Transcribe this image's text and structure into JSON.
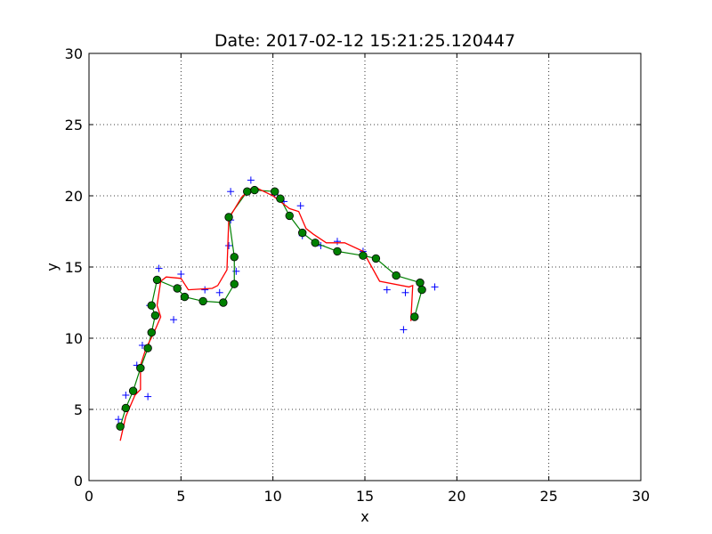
{
  "chart_data": {
    "type": "line",
    "title": "Date: 2017-02-12 15:21:25.120447",
    "xlabel": "x",
    "ylabel": "y",
    "xlim": [
      0,
      30
    ],
    "ylim": [
      0,
      30
    ],
    "xticks": [
      0,
      5,
      10,
      15,
      20,
      25,
      30
    ],
    "yticks": [
      0,
      5,
      10,
      15,
      20,
      25,
      30
    ],
    "xtick_labels": [
      "0",
      "5",
      "10",
      "15",
      "20",
      "25",
      "30"
    ],
    "ytick_labels": [
      "0",
      "5",
      "10",
      "15",
      "20",
      "25",
      "30"
    ],
    "grid": true,
    "series": [
      {
        "style": "plus-markers",
        "color": "#0000ff",
        "points": [
          [
            1.6,
            4.3
          ],
          [
            2.0,
            6.0
          ],
          [
            2.6,
            8.1
          ],
          [
            2.9,
            9.5
          ],
          [
            3.2,
            5.9
          ],
          [
            3.3,
            12.3
          ],
          [
            3.8,
            14.9
          ],
          [
            4.6,
            11.3
          ],
          [
            5.0,
            14.5
          ],
          [
            6.3,
            13.4
          ],
          [
            7.1,
            13.2
          ],
          [
            7.6,
            16.5
          ],
          [
            7.7,
            20.3
          ],
          [
            7.7,
            18.3
          ],
          [
            8.0,
            14.7
          ],
          [
            8.8,
            21.1
          ],
          [
            10.1,
            20.1
          ],
          [
            10.6,
            19.6
          ],
          [
            11.5,
            19.3
          ],
          [
            11.6,
            17.2
          ],
          [
            12.6,
            16.5
          ],
          [
            13.5,
            16.8
          ],
          [
            14.9,
            16.1
          ],
          [
            16.2,
            13.4
          ],
          [
            17.1,
            10.6
          ],
          [
            17.2,
            13.2
          ],
          [
            18.1,
            13.4
          ],
          [
            18.8,
            13.6
          ]
        ]
      },
      {
        "style": "line-with-circles",
        "color": "#008000",
        "points": [
          [
            1.7,
            3.8
          ],
          [
            2.0,
            5.1
          ],
          [
            2.4,
            6.3
          ],
          [
            2.8,
            7.9
          ],
          [
            3.2,
            9.3
          ],
          [
            3.4,
            10.4
          ],
          [
            3.6,
            11.6
          ],
          [
            3.4,
            12.3
          ],
          [
            3.7,
            14.1
          ],
          [
            4.8,
            13.5
          ],
          [
            5.2,
            12.9
          ],
          [
            6.2,
            12.6
          ],
          [
            7.3,
            12.5
          ],
          [
            7.9,
            13.8
          ],
          [
            7.9,
            15.7
          ],
          [
            7.6,
            18.5
          ],
          [
            8.6,
            20.3
          ],
          [
            9.0,
            20.4
          ],
          [
            10.1,
            20.3
          ],
          [
            10.4,
            19.8
          ],
          [
            10.9,
            18.6
          ],
          [
            11.6,
            17.4
          ],
          [
            12.3,
            16.7
          ],
          [
            13.5,
            16.1
          ],
          [
            14.9,
            15.8
          ],
          [
            15.6,
            15.6
          ],
          [
            16.7,
            14.4
          ],
          [
            18.0,
            13.9
          ],
          [
            18.1,
            13.4
          ],
          [
            17.7,
            11.5
          ]
        ]
      },
      {
        "style": "line",
        "color": "#ff0000",
        "points": [
          [
            1.7,
            2.8
          ],
          [
            2.0,
            4.5
          ],
          [
            2.5,
            6.0
          ],
          [
            2.8,
            6.4
          ],
          [
            2.8,
            8.1
          ],
          [
            3.1,
            9.3
          ],
          [
            3.5,
            10.3
          ],
          [
            3.9,
            11.5
          ],
          [
            3.7,
            12.3
          ],
          [
            3.9,
            14.0
          ],
          [
            4.2,
            14.3
          ],
          [
            5.0,
            14.2
          ],
          [
            5.4,
            13.4
          ],
          [
            6.7,
            13.5
          ],
          [
            7.0,
            13.7
          ],
          [
            7.5,
            14.8
          ],
          [
            7.6,
            18.4
          ],
          [
            8.3,
            19.9
          ],
          [
            8.8,
            20.5
          ],
          [
            9.2,
            20.5
          ],
          [
            10.0,
            20.0
          ],
          [
            10.9,
            19.1
          ],
          [
            11.4,
            18.9
          ],
          [
            11.8,
            17.7
          ],
          [
            12.2,
            17.3
          ],
          [
            12.9,
            16.7
          ],
          [
            13.9,
            16.7
          ],
          [
            14.9,
            16.1
          ],
          [
            15.8,
            14.0
          ],
          [
            17.4,
            13.6
          ],
          [
            17.6,
            13.7
          ],
          [
            17.5,
            11.2
          ]
        ]
      }
    ]
  }
}
